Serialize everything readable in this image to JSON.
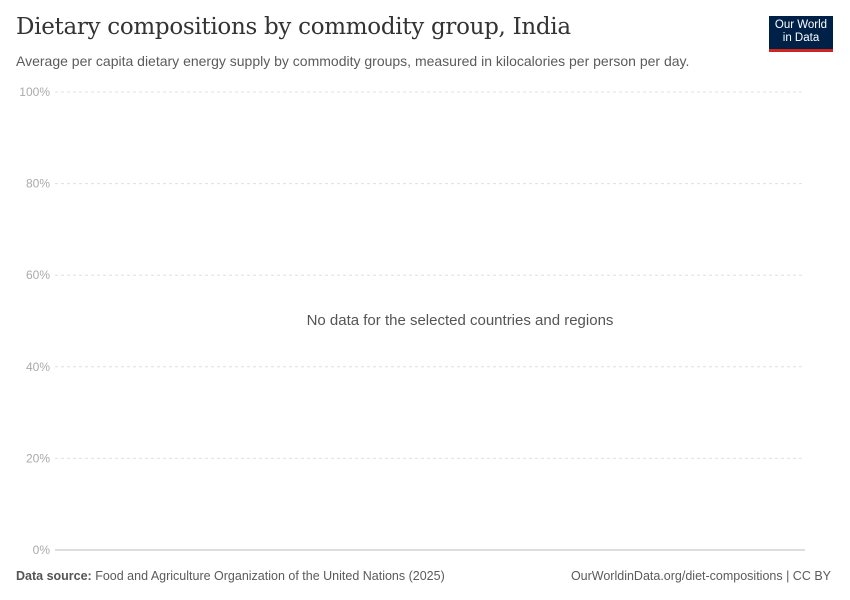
{
  "header": {
    "title": "Dietary compositions by commodity group, India",
    "subtitle": "Average per capita dietary energy supply by commodity groups, measured in kilocalories per person per day.",
    "logo_line1": "Our World",
    "logo_line2": "in Data"
  },
  "chart_data": {
    "type": "area",
    "title": "Dietary compositions by commodity group, India",
    "ylim": [
      0,
      100
    ],
    "yticks": [
      0,
      20,
      40,
      60,
      80,
      100
    ],
    "ytick_labels": [
      "0%",
      "20%",
      "40%",
      "60%",
      "80%",
      "100%"
    ],
    "grid": true,
    "series": [],
    "message": "No data for the selected countries and regions"
  },
  "footer": {
    "source_label": "Data source:",
    "source_text": "Food and Agriculture Organization of the United Nations (2025)",
    "url_license": "OurWorldinData.org/diet-compositions | CC BY"
  },
  "colors": {
    "logo_bg": "#002147",
    "logo_accent": "#ce261e"
  }
}
